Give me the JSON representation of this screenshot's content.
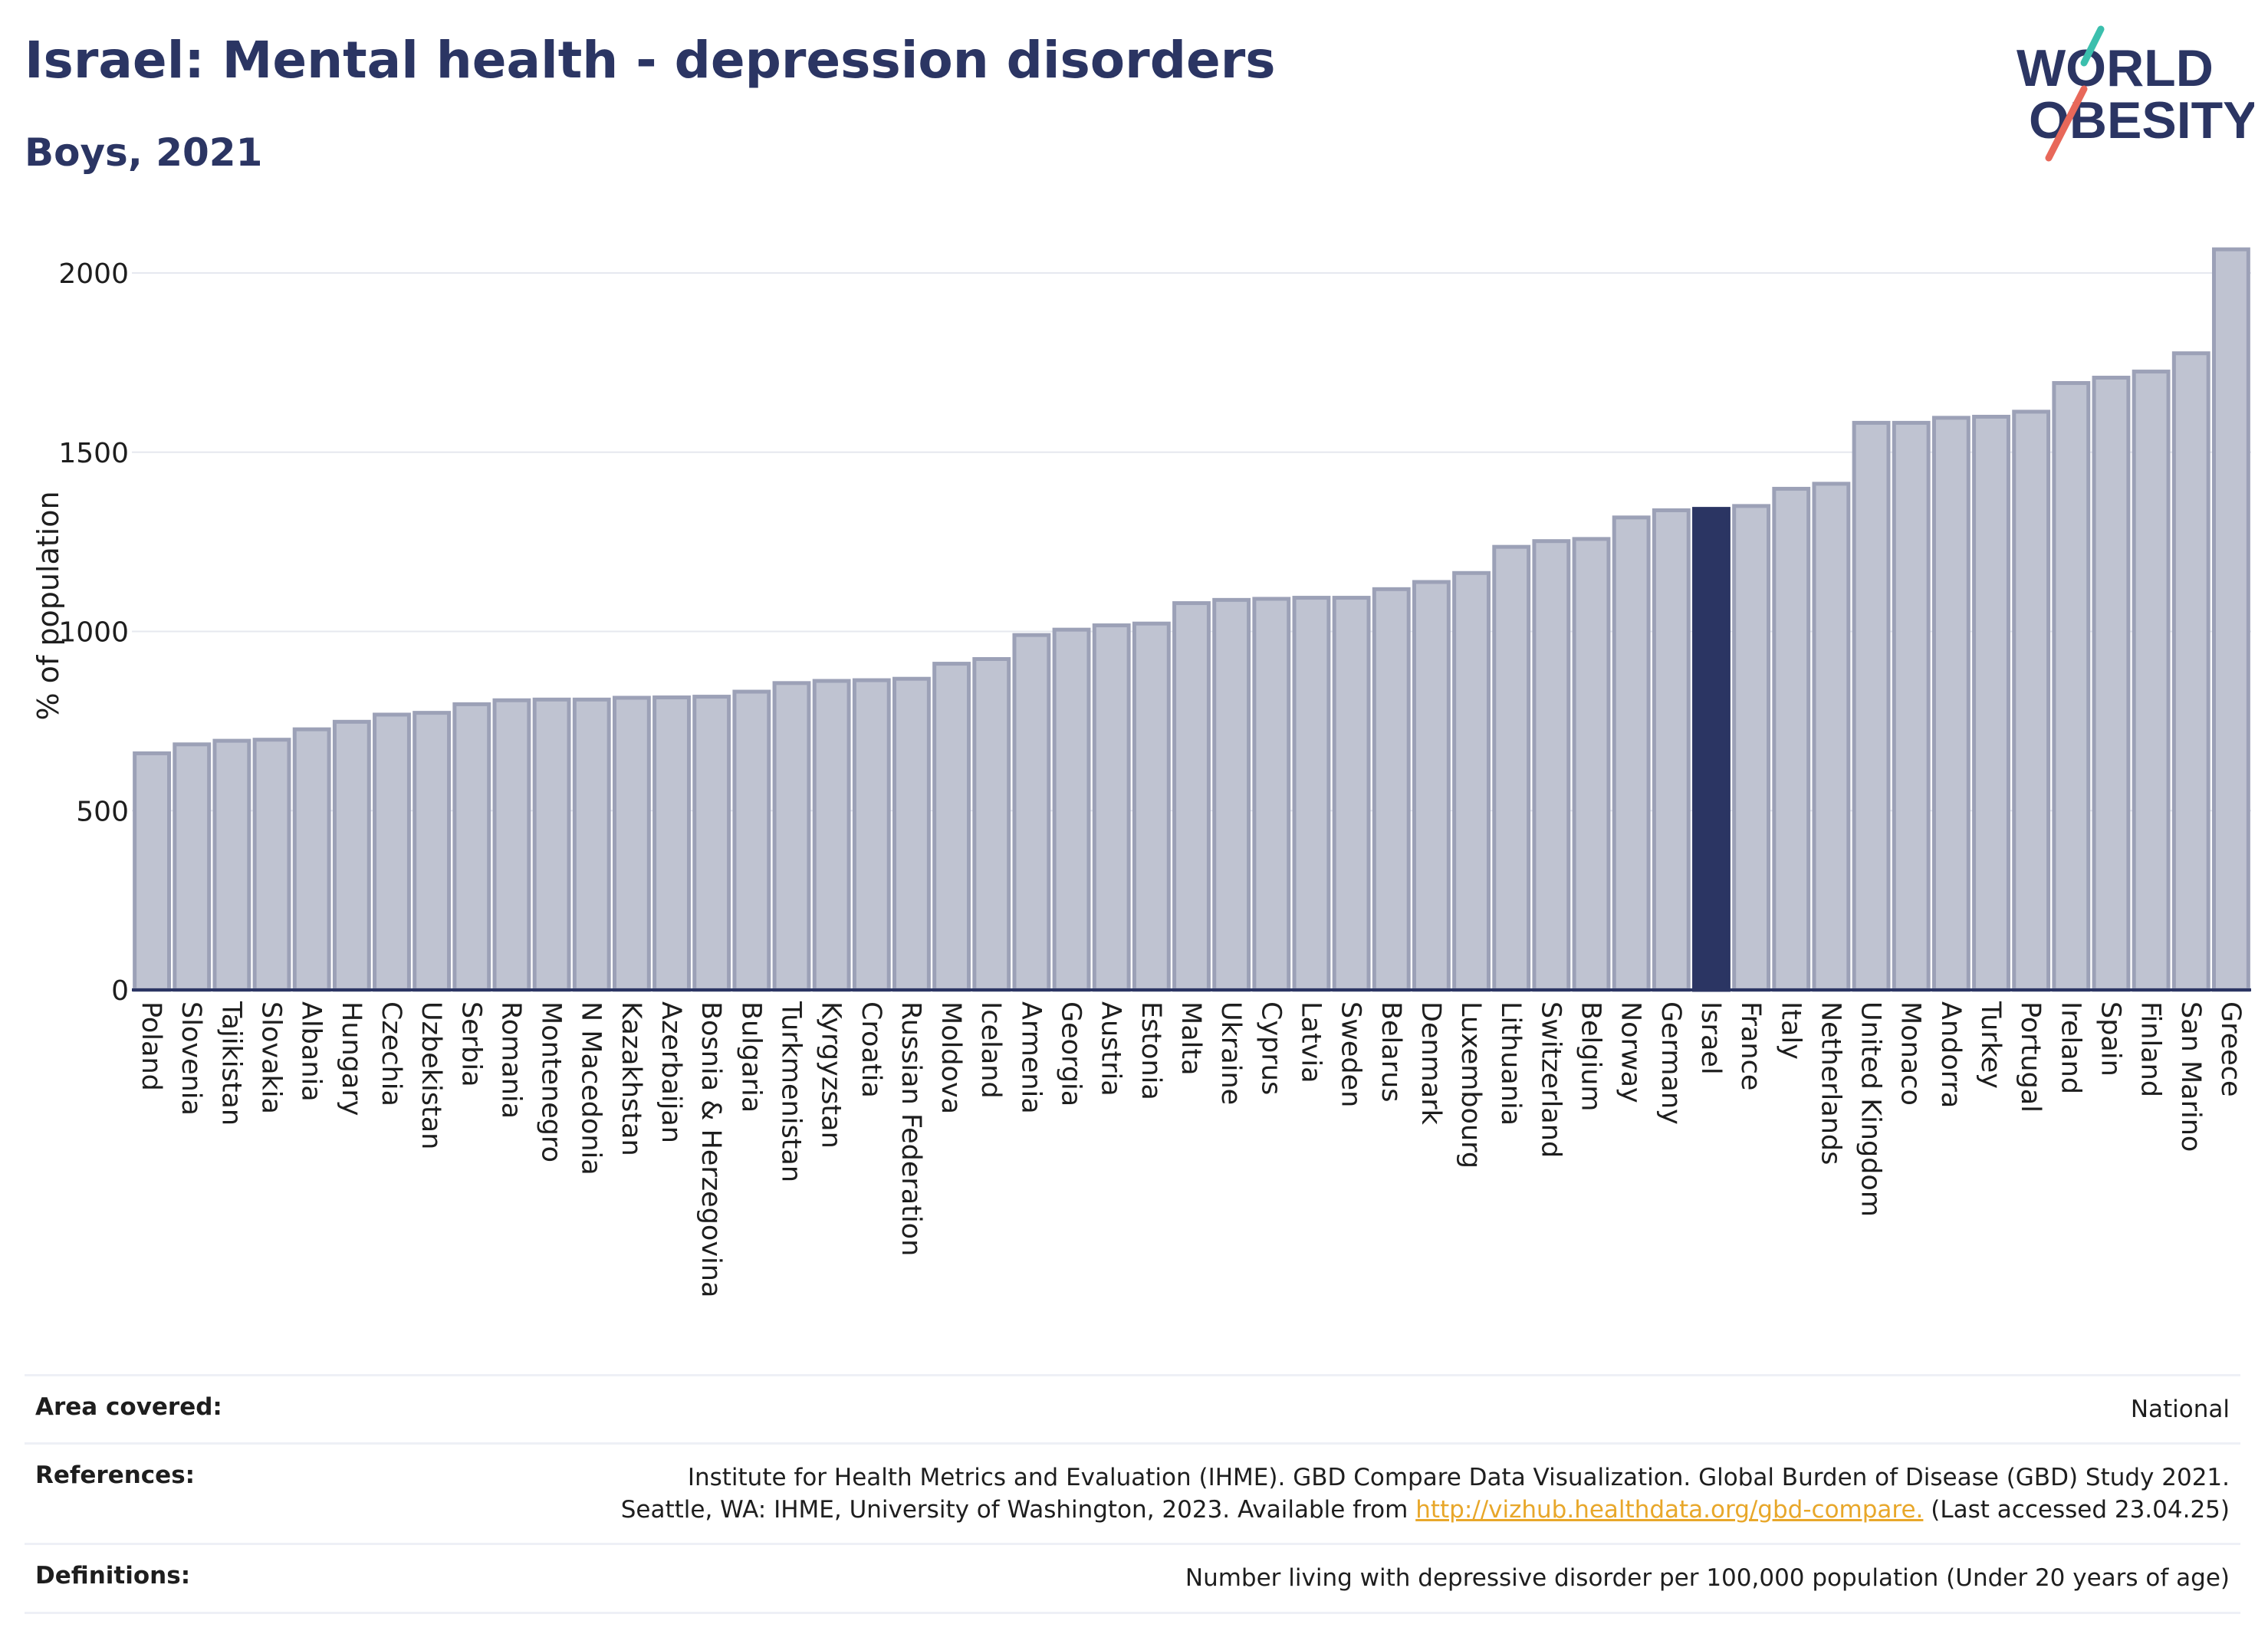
{
  "header": {
    "title": "Israel: Mental health - depression disorders",
    "subtitle": "Boys, 2021"
  },
  "logo": {
    "line1": "WORLD",
    "line2": "OBESITY",
    "colors": {
      "text": "#2b3563",
      "slash_teal": "#3bbfad",
      "slash_red": "#e8685a"
    }
  },
  "chart_data": {
    "type": "bar",
    "ylabel": "% of population",
    "xlabel": "",
    "ylim": [
      0,
      2100
    ],
    "yticks": [
      0,
      500,
      1000,
      1500,
      2000
    ],
    "grid": true,
    "highlight": "Israel",
    "colors": {
      "bar": "#bfc3d1",
      "bar_edge": "#9ca1b7",
      "highlight": "#2b3563"
    },
    "categories": [
      "Poland",
      "Slovenia",
      "Tajikistan",
      "Slovakia",
      "Albania",
      "Hungary",
      "Czechia",
      "Uzbekistan",
      "Serbia",
      "Romania",
      "Montenegro",
      "N Macedonia",
      "Kazakhstan",
      "Azerbaijan",
      "Bosnia & Herzegovina",
      "Bulgaria",
      "Turkmenistan",
      "Kyrgyzstan",
      "Croatia",
      "Russian Federation",
      "Moldova",
      "Iceland",
      "Armenia",
      "Georgia",
      "Austria",
      "Estonia",
      "Malta",
      "Ukraine",
      "Cyprus",
      "Latvia",
      "Sweden",
      "Belarus",
      "Denmark",
      "Luxembourg",
      "Lithuania",
      "Switzerland",
      "Belgium",
      "Norway",
      "Germany",
      "Israel",
      "France",
      "Italy",
      "Netherlands",
      "United Kingdom",
      "Monaco",
      "Andorra",
      "Turkey",
      "Portugal",
      "Ireland",
      "Spain",
      "Finland",
      "San Marino",
      "Greece"
    ],
    "values": [
      660,
      685,
      695,
      698,
      727,
      748,
      768,
      773,
      797,
      808,
      810,
      810,
      815,
      816,
      818,
      832,
      856,
      862,
      864,
      868,
      910,
      923,
      990,
      1005,
      1017,
      1022,
      1079,
      1088,
      1091,
      1094,
      1094,
      1118,
      1138,
      1163,
      1236,
      1252,
      1258,
      1318,
      1338,
      1342,
      1350,
      1398,
      1412,
      1582,
      1582,
      1596,
      1599,
      1613,
      1693,
      1708,
      1725,
      1776,
      2066
    ]
  },
  "footer": {
    "rows": [
      {
        "label": "Area covered:",
        "value": "National"
      },
      {
        "label": "References:",
        "value_line1": "Institute for Health Metrics and Evaluation (IHME). GBD Compare Data Visualization. Global Burden of Disease (GBD) Study 2021.",
        "value_line2_pre": "Seattle, WA: IHME, University of Washington, 2023. Available from ",
        "value_link": "http://vizhub.healthdata.org/gbd-compare.",
        "value_line2_post": " (Last accessed 23.04.25)"
      },
      {
        "label": "Definitions:",
        "value": "Number living with depressive disorder per 100,000 population (Under 20 years of age)"
      }
    ]
  }
}
